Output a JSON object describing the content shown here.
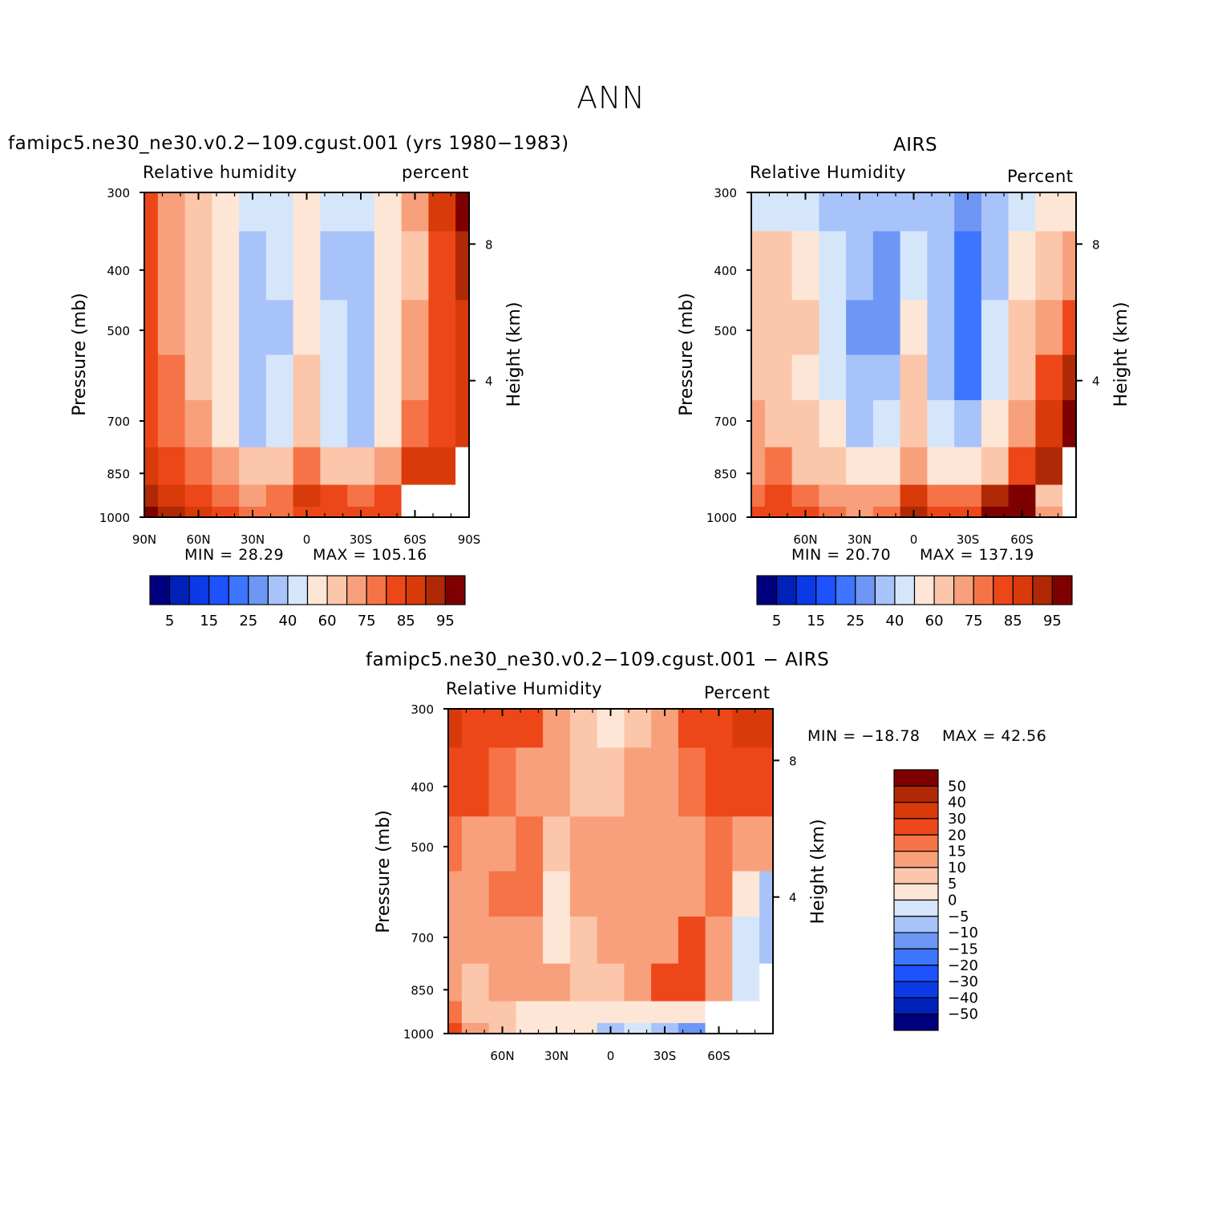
{
  "main_title": "ANN",
  "colors": {
    "rh_scale": [
      "#00007f",
      "#0021b8",
      "#0a3be6",
      "#1e52ff",
      "#3d75ff",
      "#6e96f5",
      "#a8c3fa",
      "#d6e6fa",
      "#fde6d6",
      "#fbc6aa",
      "#f8a07c",
      "#f57347",
      "#ed4719",
      "#d83a0a",
      "#b02906",
      "#7f0000"
    ],
    "diff_scale": [
      "#00007f",
      "#0021b8",
      "#0a3be6",
      "#1e52ff",
      "#3d75ff",
      "#6e96f5",
      "#a8c3fa",
      "#d6e6fa",
      "#fde6d6",
      "#fbc6aa",
      "#f8a07c",
      "#f57347",
      "#ed4719",
      "#d83a0a",
      "#b02906",
      "#7f0000"
    ]
  },
  "panels": [
    {
      "title": "famipc5.ne30_ne30.v0.2−109.cgust.001 (yrs 1980−1983)",
      "left_label": "Relative humidity",
      "right_label": "percent",
      "ylabel": "Pressure (mb)",
      "y2label": "Height (km)",
      "min_text": "MIN =   28.29",
      "max_text": "MAX =  105.16"
    },
    {
      "title": "AIRS",
      "left_label": "Relative Humidity",
      "right_label": "Percent",
      "ylabel": "Pressure (mb)",
      "y2label": "Height (km)",
      "min_text": "MIN =   20.70",
      "max_text": "MAX =  137.19"
    },
    {
      "title": "famipc5.ne30_ne30.v0.2−109.cgust.001  −  AIRS",
      "left_label": "Relative Humidity",
      "right_label": "Percent",
      "ylabel": "Pressure (mb)",
      "y2label": "Height (km)",
      "min_text": "MIN = −18.78",
      "max_text": "MAX =   42.56"
    }
  ],
  "chart_data": [
    {
      "type": "contour",
      "title": "famipc5.ne30_ne30.v0.2−109.cgust.001 (yrs 1980−1983)",
      "xlabel": "",
      "ylabel": "Pressure (mb)",
      "y2label": "Height (km)",
      "x_ticks": [
        "90N",
        "60N",
        "30N",
        "0",
        "30S",
        "60S",
        "90S"
      ],
      "x_values": [
        90,
        60,
        30,
        0,
        -30,
        -60,
        -90
      ],
      "xlim": [
        90,
        -90
      ],
      "y_ticks": [
        "300",
        "400",
        "500",
        "700",
        "850",
        "1000"
      ],
      "y_values": [
        300,
        400,
        500,
        700,
        850,
        1000
      ],
      "ylim": [
        300,
        1000
      ],
      "y2_ticks": [
        "8",
        "4"
      ],
      "y2_values": [
        8,
        4
      ],
      "levels": [
        "5",
        "15",
        "25",
        "40",
        "60",
        "75",
        "85",
        "95"
      ],
      "min": 28.29,
      "max": 105.16,
      "lat": [
        90,
        75,
        60,
        45,
        30,
        15,
        0,
        -15,
        -30,
        -45,
        -60,
        -75,
        -90
      ],
      "pressure": [
        300,
        400,
        500,
        600,
        700,
        850,
        925,
        1000
      ],
      "values": [
        [
          82,
          74,
          67,
          56,
          42,
          48,
          58,
          47,
          44,
          55,
          70,
          85,
          96
        ],
        [
          84,
          74,
          66,
          52,
          36,
          42,
          54,
          36,
          33,
          52,
          68,
          83,
          90
        ],
        [
          82,
          74,
          66,
          50,
          34,
          38,
          57,
          40,
          32,
          50,
          70,
          82,
          88
        ],
        [
          81,
          76,
          68,
          52,
          35,
          40,
          62,
          44,
          34,
          52,
          74,
          80,
          86
        ],
        [
          82,
          77,
          70,
          56,
          38,
          45,
          66,
          48,
          38,
          55,
          76,
          82,
          85
        ],
        [
          85,
          82,
          78,
          70,
          62,
          65,
          76,
          66,
          62,
          72,
          86,
          88,
          null
        ],
        [
          92,
          86,
          82,
          78,
          74,
          76,
          86,
          80,
          76,
          80,
          null,
          null,
          null
        ],
        [
          100,
          90,
          86,
          82,
          78,
          78,
          84,
          80,
          80,
          82,
          null,
          null,
          null
        ]
      ]
    },
    {
      "type": "contour",
      "title": "AIRS",
      "xlabel": "",
      "ylabel": "Pressure (mb)",
      "y2label": "Height (km)",
      "x_ticks": [
        "60N",
        "30N",
        "0",
        "30S",
        "60S"
      ],
      "x_values": [
        60,
        30,
        0,
        -30,
        -60
      ],
      "xlim": [
        90,
        -90
      ],
      "y_ticks": [
        "300",
        "400",
        "500",
        "700",
        "850",
        "1000"
      ],
      "y_values": [
        300,
        400,
        500,
        700,
        850,
        1000
      ],
      "ylim": [
        300,
        1000
      ],
      "y2_ticks": [
        "8",
        "4"
      ],
      "y2_values": [
        8,
        4
      ],
      "levels": [
        "5",
        "15",
        "25",
        "40",
        "60",
        "75",
        "85",
        "95"
      ],
      "min": 20.7,
      "max": 137.19,
      "lat": [
        90,
        75,
        60,
        45,
        30,
        15,
        0,
        -15,
        -30,
        -45,
        -60,
        -75,
        -90
      ],
      "pressure": [
        300,
        400,
        500,
        600,
        700,
        850,
        925,
        1000
      ],
      "values": [
        [
          45,
          40,
          40,
          38,
          32,
          30,
          38,
          32,
          28,
          35,
          45,
          50,
          55
        ],
        [
          60,
          62,
          58,
          48,
          32,
          28,
          45,
          30,
          22,
          38,
          55,
          65,
          72
        ],
        [
          65,
          66,
          60,
          45,
          26,
          26,
          55,
          30,
          20,
          40,
          60,
          72,
          82
        ],
        [
          68,
          66,
          58,
          46,
          32,
          36,
          62,
          34,
          24,
          44,
          66,
          80,
          92
        ],
        [
          70,
          68,
          60,
          50,
          38,
          42,
          66,
          40,
          30,
          50,
          72,
          86,
          100
        ],
        [
          74,
          78,
          66,
          60,
          56,
          58,
          70,
          58,
          54,
          66,
          84,
          92,
          null
        ],
        [
          78,
          82,
          76,
          72,
          70,
          72,
          86,
          78,
          76,
          90,
          110,
          65,
          null
        ],
        [
          80,
          84,
          82,
          76,
          74,
          76,
          92,
          84,
          82,
          96,
          130,
          70,
          null
        ]
      ]
    },
    {
      "type": "contour",
      "title": "famipc5.ne30_ne30.v0.2−109.cgust.001  −  AIRS",
      "xlabel": "",
      "ylabel": "Pressure (mb)",
      "y2label": "Height (km)",
      "x_ticks": [
        "60N",
        "30N",
        "0",
        "30S",
        "60S"
      ],
      "x_values": [
        60,
        30,
        0,
        -30,
        -60
      ],
      "xlim": [
        90,
        -90
      ],
      "y_ticks": [
        "300",
        "400",
        "500",
        "700",
        "850",
        "1000"
      ],
      "y_values": [
        300,
        400,
        500,
        700,
        850,
        1000
      ],
      "ylim": [
        300,
        1000
      ],
      "y2_ticks": [
        "8",
        "4"
      ],
      "y2_values": [
        8,
        4
      ],
      "levels": [
        "50",
        "40",
        "30",
        "20",
        "15",
        "10",
        "5",
        "0",
        "−5",
        "−10",
        "−15",
        "−20",
        "−30",
        "−40",
        "−50"
      ],
      "min": -18.78,
      "max": 42.56,
      "lat": [
        90,
        75,
        60,
        45,
        30,
        15,
        0,
        -15,
        -30,
        -45,
        -60,
        -75,
        -90
      ],
      "pressure": [
        300,
        400,
        500,
        600,
        700,
        850,
        925,
        1000
      ],
      "values": [
        [
          30,
          25,
          22,
          20,
          10,
          8,
          4,
          8,
          12,
          20,
          24,
          30,
          35
        ],
        [
          24,
          20,
          15,
          14,
          10,
          6,
          8,
          10,
          12,
          18,
          20,
          24,
          26
        ],
        [
          18,
          14,
          12,
          15,
          8,
          10,
          14,
          10,
          10,
          14,
          16,
          12,
          10
        ],
        [
          14,
          12,
          15,
          16,
          4,
          10,
          12,
          12,
          12,
          14,
          18,
          0,
          -8
        ],
        [
          12,
          10,
          14,
          14,
          4,
          6,
          10,
          10,
          14,
          20,
          10,
          -4,
          -10
        ],
        [
          10,
          8,
          14,
          14,
          10,
          8,
          8,
          10,
          24,
          25,
          12,
          -4,
          null
        ],
        [
          16,
          8,
          6,
          4,
          2,
          2,
          0,
          2,
          4,
          0,
          null,
          null,
          null
        ],
        [
          22,
          10,
          6,
          2,
          0,
          2,
          -6,
          -4,
          -8,
          -14,
          null,
          null,
          null
        ]
      ]
    }
  ]
}
